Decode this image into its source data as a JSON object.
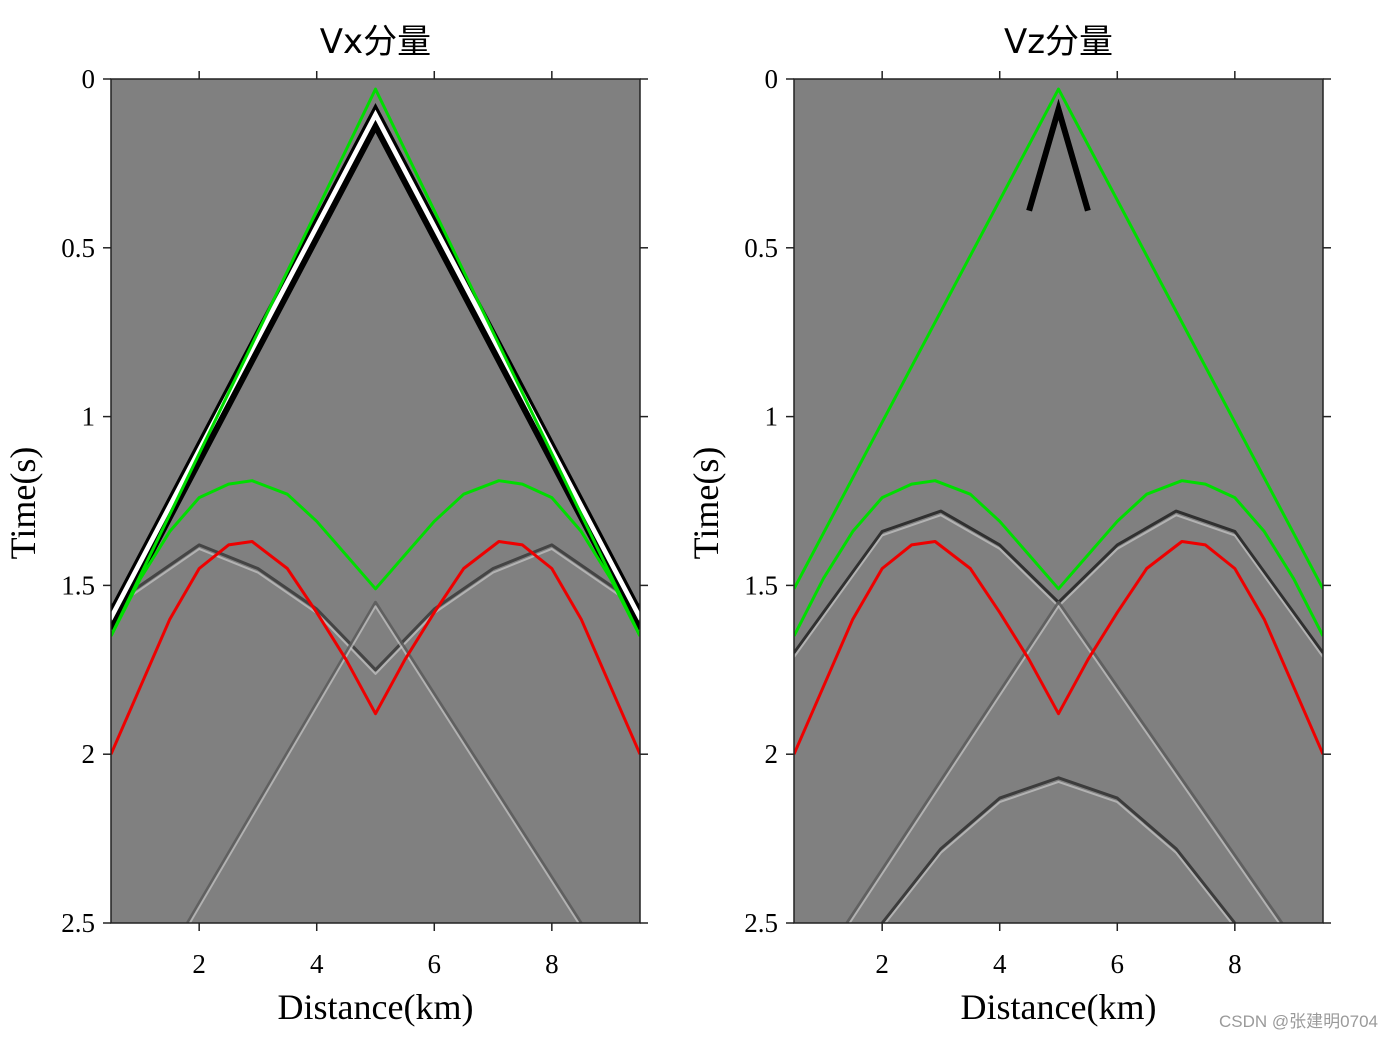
{
  "watermark": "CSDN @张建明0704",
  "chart_data": [
    {
      "type": "seismogram",
      "title": "Vx分量",
      "xlabel": "Distance(km)",
      "ylabel": "Time(s)",
      "xlim": [
        0.5,
        9.5
      ],
      "ylim": [
        0,
        2.5
      ],
      "xticks": [
        2,
        4,
        6,
        8
      ],
      "xtick_labels": [
        "2",
        "4",
        "6",
        "8"
      ],
      "yticks": [
        0,
        0.5,
        1,
        1.5,
        2,
        2.5
      ],
      "ytick_labels": [
        "0",
        "0.5",
        "1",
        "1.5",
        "2",
        "2.5"
      ],
      "background_color": "#808080",
      "direct_wave": {
        "x": [
          0.5,
          5.0,
          9.5
        ],
        "t": [
          1.52,
          0.03,
          1.52
        ],
        "colors": [
          "#000000",
          "#ffffff",
          "#000000"
        ],
        "offsets": [
          0.06,
          0.08,
          0.11
        ]
      },
      "events": [
        {
          "x": [
            0.5,
            2.0,
            3.0,
            4.0,
            5.0,
            6.0,
            7.0,
            8.0,
            9.5
          ],
          "t": [
            1.56,
            1.38,
            1.45,
            1.57,
            1.75,
            1.57,
            1.45,
            1.38,
            1.56
          ],
          "color": "#3a3a3a"
        },
        {
          "x": [
            1.8,
            5.0,
            8.5
          ],
          "t": [
            2.5,
            1.55,
            2.5
          ],
          "color": "#5a5a5a"
        }
      ],
      "series": [
        {
          "name": "green-direct",
          "color": "#00dd00",
          "x": [
            0.5,
            5.0,
            9.5
          ],
          "t": [
            1.65,
            0.03,
            1.65
          ]
        },
        {
          "name": "green-reflection",
          "color": "#00dd00",
          "x": [
            0.5,
            1.0,
            1.5,
            2.0,
            2.5,
            2.9,
            3.5,
            4.0,
            4.5,
            5.0,
            5.5,
            6.0,
            6.5,
            7.1,
            7.5,
            8.0,
            8.5,
            9.0,
            9.5
          ],
          "t": [
            1.65,
            1.48,
            1.34,
            1.24,
            1.2,
            1.19,
            1.23,
            1.31,
            1.41,
            1.51,
            1.41,
            1.31,
            1.23,
            1.19,
            1.2,
            1.24,
            1.34,
            1.48,
            1.65
          ]
        },
        {
          "name": "red-reflection",
          "color": "#ee0000",
          "x": [
            0.5,
            1.0,
            1.5,
            2.0,
            2.5,
            2.9,
            3.5,
            4.0,
            4.5,
            5.0,
            5.5,
            6.0,
            6.5,
            7.1,
            7.5,
            8.0,
            8.5,
            9.0,
            9.5
          ],
          "t": [
            2.0,
            1.8,
            1.6,
            1.45,
            1.38,
            1.37,
            1.45,
            1.58,
            1.72,
            1.88,
            1.72,
            1.58,
            1.45,
            1.37,
            1.38,
            1.45,
            1.6,
            1.8,
            2.0
          ]
        }
      ]
    },
    {
      "type": "seismogram",
      "title": "Vz分量",
      "xlabel": "Distance(km)",
      "ylabel": "Time(s)",
      "xlim": [
        0.5,
        9.5
      ],
      "ylim": [
        0,
        2.5
      ],
      "xticks": [
        2,
        4,
        6,
        8
      ],
      "xtick_labels": [
        "2",
        "4",
        "6",
        "8"
      ],
      "yticks": [
        0,
        0.5,
        1,
        1.5,
        2,
        2.5
      ],
      "ytick_labels": [
        "0",
        "0.5",
        "1",
        "1.5",
        "2",
        "2.5"
      ],
      "background_color": "#808080",
      "direct_wave": {
        "x": [
          4.5,
          5.0,
          5.5
        ],
        "t": [
          0.36,
          0.06,
          0.36
        ],
        "colors": [
          "#000000"
        ],
        "offsets": [
          0.03
        ]
      },
      "events": [
        {
          "x": [
            0.5,
            2.0,
            3.0,
            4.0,
            5.0,
            6.0,
            7.0,
            8.0,
            9.5
          ],
          "t": [
            1.7,
            1.34,
            1.28,
            1.38,
            1.55,
            1.38,
            1.28,
            1.34,
            1.7
          ],
          "color": "#222222"
        },
        {
          "x": [
            2.0,
            3.0,
            4.0,
            5.0,
            6.0,
            7.0,
            8.0
          ],
          "t": [
            2.5,
            2.28,
            2.13,
            2.07,
            2.13,
            2.28,
            2.5
          ],
          "color": "#303030"
        },
        {
          "x": [
            1.4,
            5.0,
            8.8
          ],
          "t": [
            2.5,
            1.55,
            2.5
          ],
          "color": "#5a5a5a"
        }
      ],
      "series": [
        {
          "name": "green-direct",
          "color": "#00dd00",
          "x": [
            0.5,
            5.0,
            9.5
          ],
          "t": [
            1.51,
            0.03,
            1.51
          ]
        },
        {
          "name": "green-reflection",
          "color": "#00dd00",
          "x": [
            0.5,
            1.0,
            1.5,
            2.0,
            2.5,
            2.9,
            3.5,
            4.0,
            4.5,
            5.0,
            5.5,
            6.0,
            6.5,
            7.1,
            7.5,
            8.0,
            8.5,
            9.0,
            9.5
          ],
          "t": [
            1.65,
            1.48,
            1.34,
            1.24,
            1.2,
            1.19,
            1.23,
            1.31,
            1.41,
            1.51,
            1.41,
            1.31,
            1.23,
            1.19,
            1.2,
            1.24,
            1.34,
            1.48,
            1.65
          ]
        },
        {
          "name": "red-reflection",
          "color": "#ee0000",
          "x": [
            0.5,
            1.0,
            1.5,
            2.0,
            2.5,
            2.9,
            3.5,
            4.0,
            4.5,
            5.0,
            5.5,
            6.0,
            6.5,
            7.1,
            7.5,
            8.0,
            8.5,
            9.0,
            9.5
          ],
          "t": [
            2.0,
            1.8,
            1.6,
            1.45,
            1.38,
            1.37,
            1.45,
            1.58,
            1.72,
            1.88,
            1.72,
            1.58,
            1.45,
            1.37,
            1.38,
            1.45,
            1.6,
            1.8,
            2.0
          ]
        }
      ]
    }
  ]
}
